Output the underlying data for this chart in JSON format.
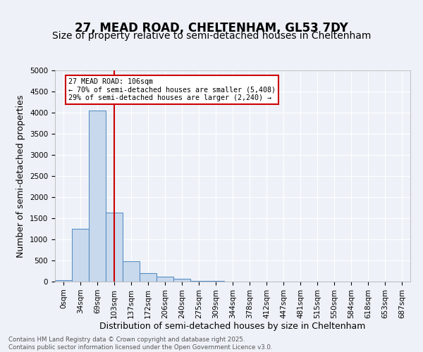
{
  "title": "27, MEAD ROAD, CHELTENHAM, GL53 7DY",
  "subtitle": "Size of property relative to semi-detached houses in Cheltenham",
  "xlabel": "Distribution of semi-detached houses by size in Cheltenham",
  "ylabel": "Number of semi-detached properties",
  "footer_line1": "Contains HM Land Registry data © Crown copyright and database right 2025.",
  "footer_line2": "Contains public sector information licensed under the Open Government Licence v3.0.",
  "bin_labels": [
    "0sqm",
    "34sqm",
    "69sqm",
    "103sqm",
    "137sqm",
    "172sqm",
    "206sqm",
    "240sqm",
    "275sqm",
    "309sqm",
    "344sqm",
    "378sqm",
    "412sqm",
    "447sqm",
    "481sqm",
    "515sqm",
    "550sqm",
    "584sqm",
    "618sqm",
    "653sqm",
    "687sqm"
  ],
  "bar_values": [
    30,
    1250,
    4050,
    1630,
    480,
    195,
    110,
    70,
    25,
    10,
    5,
    2,
    0,
    0,
    0,
    0,
    0,
    0,
    0,
    0,
    0
  ],
  "bar_color": "#c9d9ed",
  "bar_edge_color": "#5a8fc3",
  "property_line_x": 3,
  "property_sqm": 106,
  "property_label": "27 MEAD ROAD: 106sqm",
  "arrow_left_text": "← 70% of semi-detached houses are smaller (5,408)",
  "arrow_right_text": "29% of semi-detached houses are larger (2,240) →",
  "line_color": "#cc0000",
  "box_color": "#cc0000",
  "ylim": [
    0,
    5000
  ],
  "yticks": [
    0,
    500,
    1000,
    1500,
    2000,
    2500,
    3000,
    3500,
    4000,
    4500,
    5000
  ],
  "background_color": "#eef2f8",
  "plot_bg_color": "#eef2f8",
  "grid_color": "#ffffff",
  "title_fontsize": 12,
  "subtitle_fontsize": 10,
  "axis_label_fontsize": 9,
  "tick_fontsize": 7.5
}
